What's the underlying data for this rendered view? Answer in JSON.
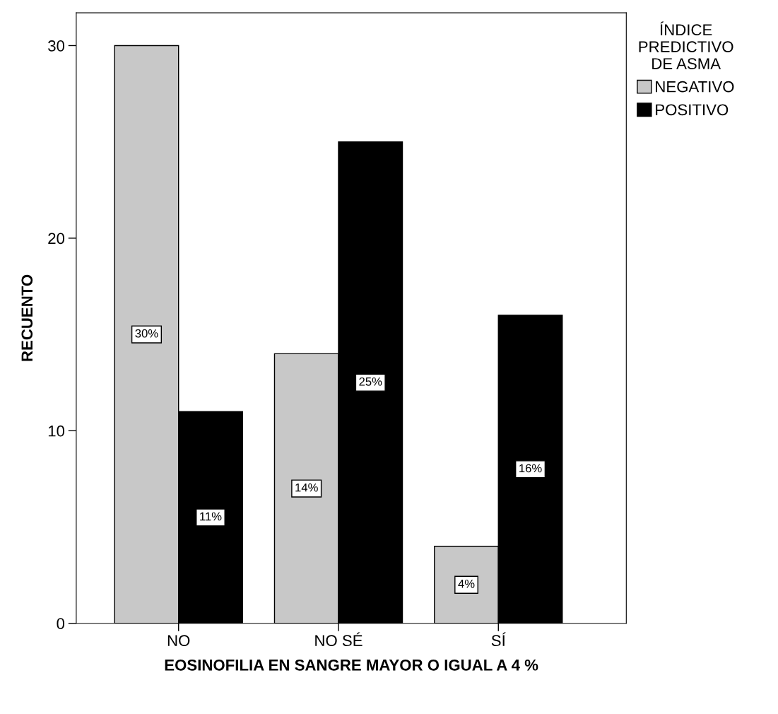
{
  "chart_data": {
    "type": "bar",
    "xlabel": "EOSINOFILIA EN SANGRE MAYOR O IGUAL A 4 %",
    "ylabel": "RECUENTO",
    "legend_title": "ÍNDICE\nPREDICTIVO\nDE ASMA",
    "categories": [
      "NO",
      "NO SÉ",
      "SÍ"
    ],
    "series": [
      {
        "name": "NEGATIVO",
        "color": "#c8c8c8",
        "values": [
          30,
          14,
          4
        ],
        "value_labels": [
          "30%",
          "14%",
          "4%"
        ]
      },
      {
        "name": "POSITIVO",
        "color": "#000000",
        "values": [
          11,
          25,
          16
        ],
        "value_labels": [
          "11%",
          "25%",
          "16%"
        ]
      }
    ],
    "ylim": [
      0,
      31.7
    ],
    "yticks": [
      0,
      10,
      20,
      30
    ],
    "grid": false,
    "legend": "top right"
  }
}
